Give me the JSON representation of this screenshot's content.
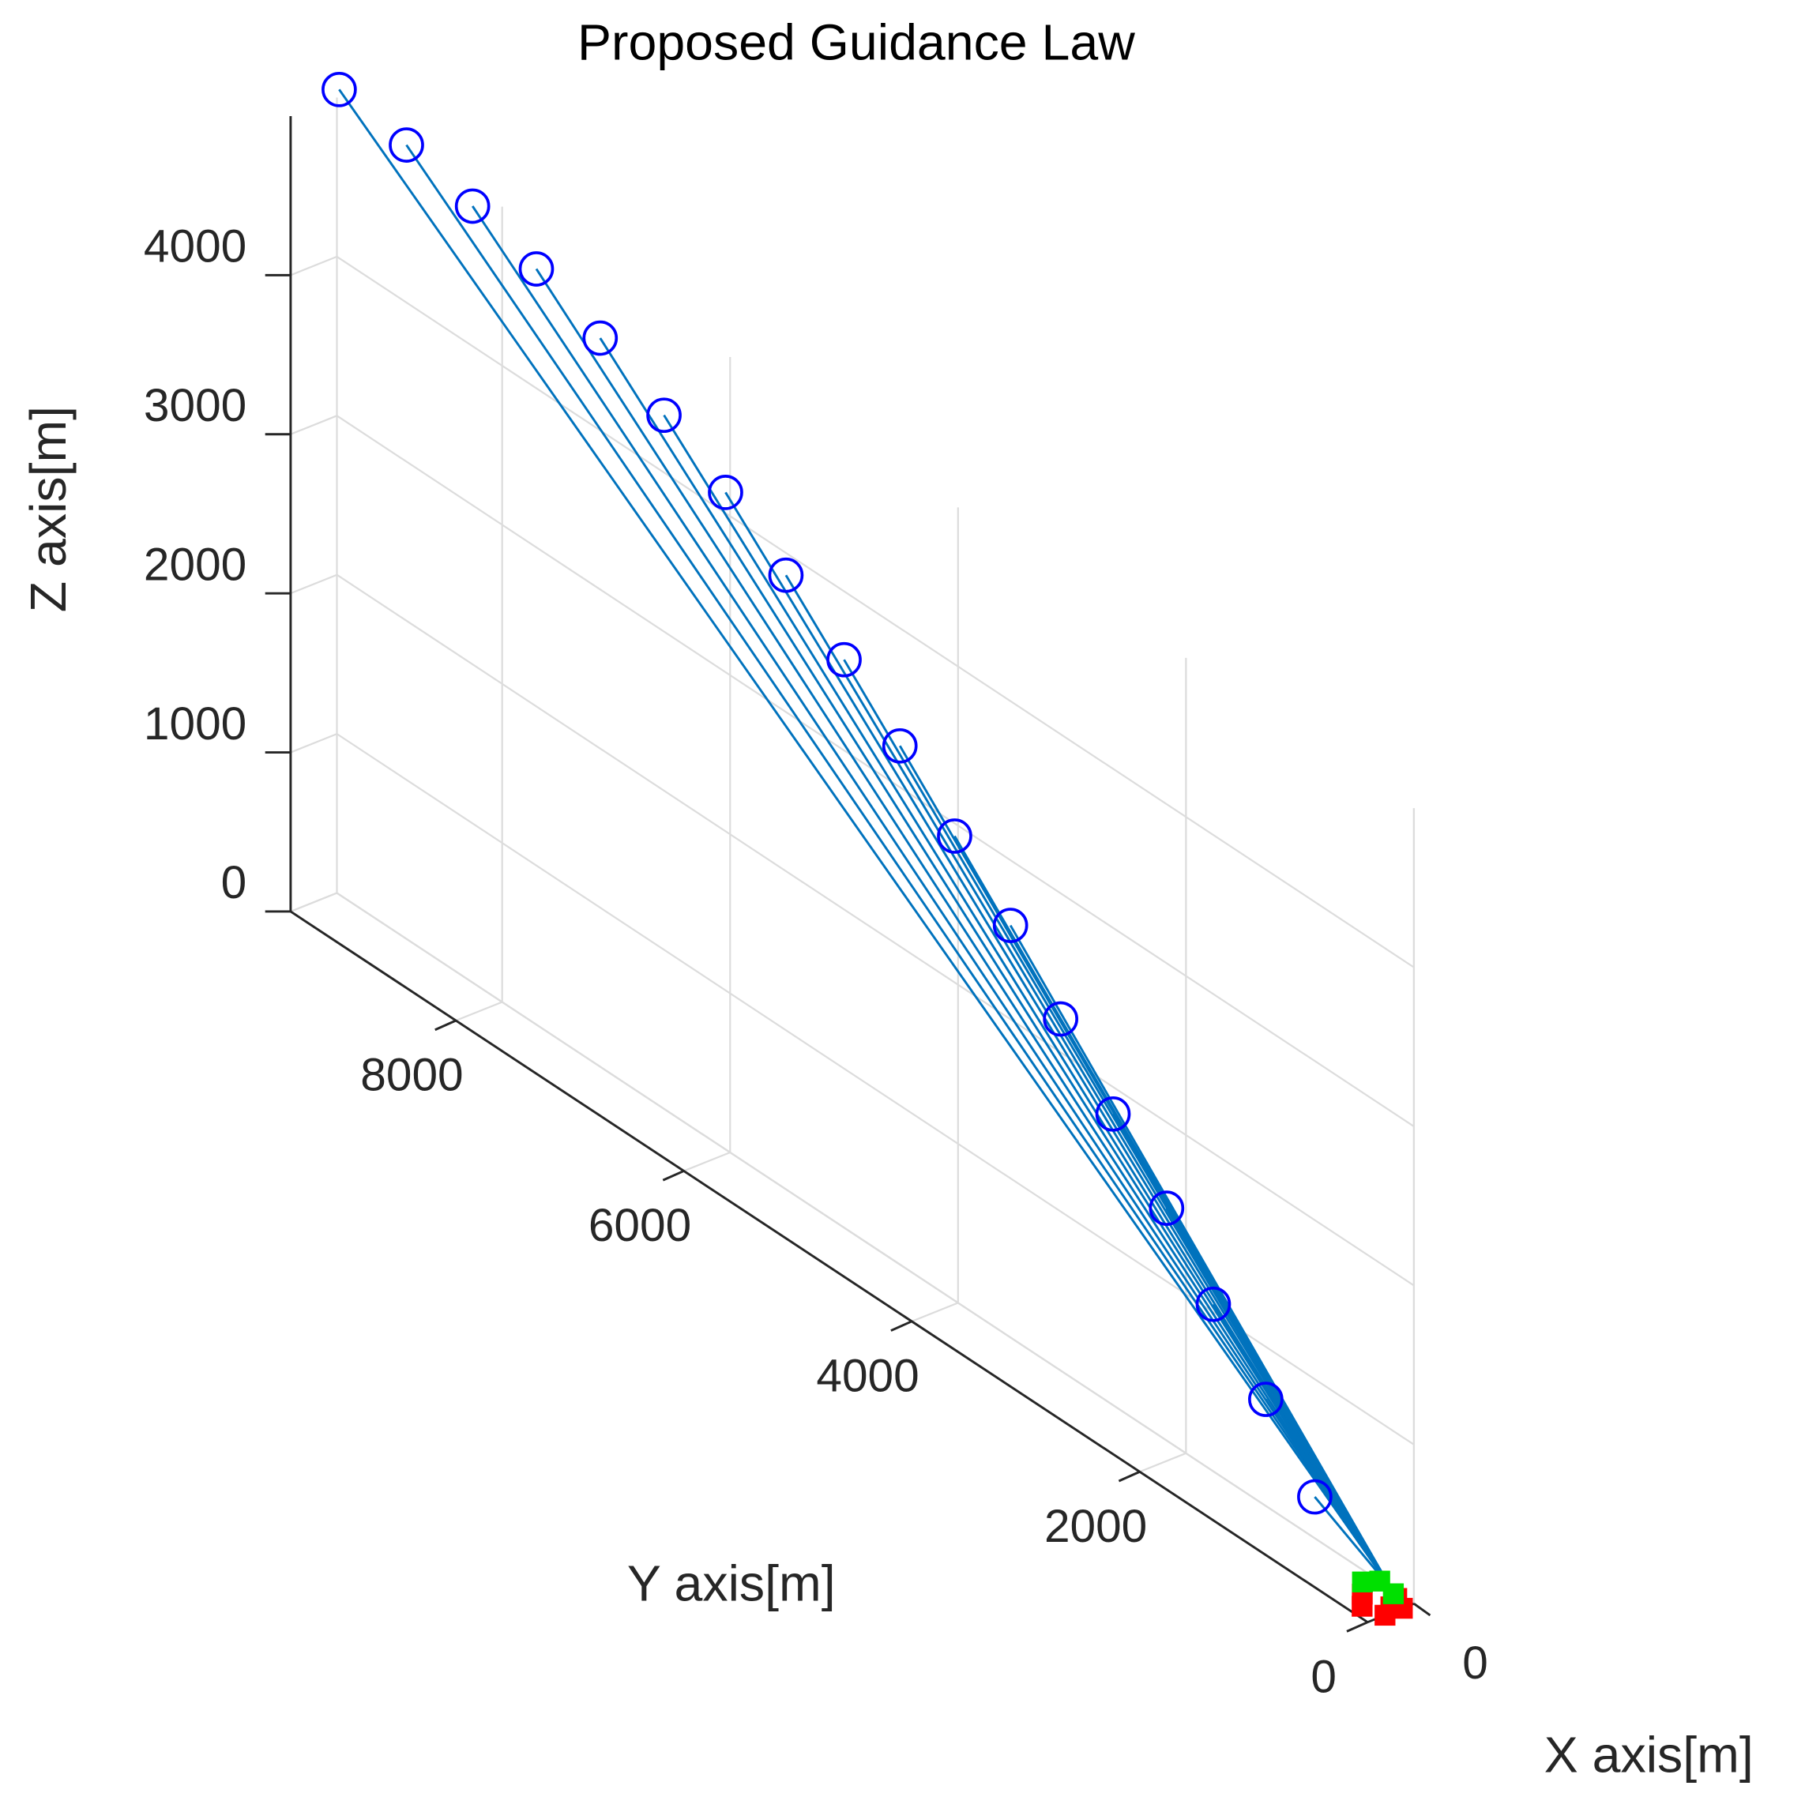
{
  "chart_data": {
    "type": "line3d",
    "title": "Proposed Guidance Law",
    "xlabel": "X axis[m]",
    "ylabel": "Y axis[m]",
    "zlabel": "Z axis[m]",
    "xlim": [
      0,
      400
    ],
    "ylim": [
      0,
      9450
    ],
    "zlim": [
      0,
      5000
    ],
    "xticks": [
      0
    ],
    "yticks": [
      0,
      2000,
      4000,
      6000,
      8000
    ],
    "zticks": [
      0,
      1000,
      2000,
      3000,
      4000
    ],
    "grid": true,
    "line_color": "#0072bd",
    "marker_color": "#0000ff",
    "series": [
      {
        "x": [
          0,
          0
        ],
        "y": [
          9430,
          200
        ],
        "z": [
          5060,
          0
        ]
      },
      {
        "x": [
          0,
          0
        ],
        "y": [
          8840,
          200
        ],
        "z": [
          4990,
          0
        ]
      },
      {
        "x": [
          0,
          0
        ],
        "y": [
          8260,
          200
        ],
        "z": [
          4880,
          0
        ]
      },
      {
        "x": [
          0,
          0
        ],
        "y": [
          7700,
          200
        ],
        "z": [
          4750,
          0
        ]
      },
      {
        "x": [
          0,
          0
        ],
        "y": [
          7140,
          200
        ],
        "z": [
          4580,
          0
        ]
      },
      {
        "x": [
          0,
          0
        ],
        "y": [
          6580,
          200
        ],
        "z": [
          4360,
          0
        ]
      },
      {
        "x": [
          0,
          0
        ],
        "y": [
          6040,
          200
        ],
        "z": [
          4130,
          0
        ]
      },
      {
        "x": [
          0,
          0
        ],
        "y": [
          5510,
          200
        ],
        "z": [
          3860,
          0
        ]
      },
      {
        "x": [
          0,
          0
        ],
        "y": [
          5000,
          200
        ],
        "z": [
          3570,
          0
        ]
      },
      {
        "x": [
          0,
          0
        ],
        "y": [
          4510,
          200
        ],
        "z": [
          3260,
          0
        ]
      },
      {
        "x": [
          0,
          0
        ],
        "y": [
          4030,
          200
        ],
        "z": [
          2920,
          0
        ]
      },
      {
        "x": [
          0,
          0
        ],
        "y": [
          3540,
          200
        ],
        "z": [
          2590,
          0
        ]
      },
      {
        "x": [
          0,
          0
        ],
        "y": [
          3100,
          200
        ],
        "z": [
          2210,
          0
        ]
      },
      {
        "x": [
          0,
          0
        ],
        "y": [
          2640,
          200
        ],
        "z": [
          1830,
          0
        ]
      },
      {
        "x": [
          0,
          0
        ],
        "y": [
          2170,
          200
        ],
        "z": [
          1460,
          0
        ]
      },
      {
        "x": [
          0,
          0
        ],
        "y": [
          1760,
          200
        ],
        "z": [
          1050,
          0
        ]
      },
      {
        "x": [
          0,
          0
        ],
        "y": [
          1300,
          200
        ],
        "z": [
          670,
          0
        ]
      },
      {
        "x": [
          0,
          0
        ],
        "y": [
          870,
          200
        ],
        "z": [
          260,
          0
        ]
      }
    ],
    "targets": [
      {
        "color": "#ff0000",
        "x": [
          50,
          150,
          250,
          300,
          200,
          100
        ],
        "y": [
          100,
          50,
          0,
          150,
          250,
          0
        ],
        "z": [
          0,
          0,
          0,
          0,
          0,
          0
        ]
      },
      {
        "color": "#00e000",
        "x": [
          0,
          100,
          30
        ],
        "y": [
          300,
          350,
          150
        ],
        "z": [
          0,
          0,
          0
        ]
      }
    ]
  }
}
